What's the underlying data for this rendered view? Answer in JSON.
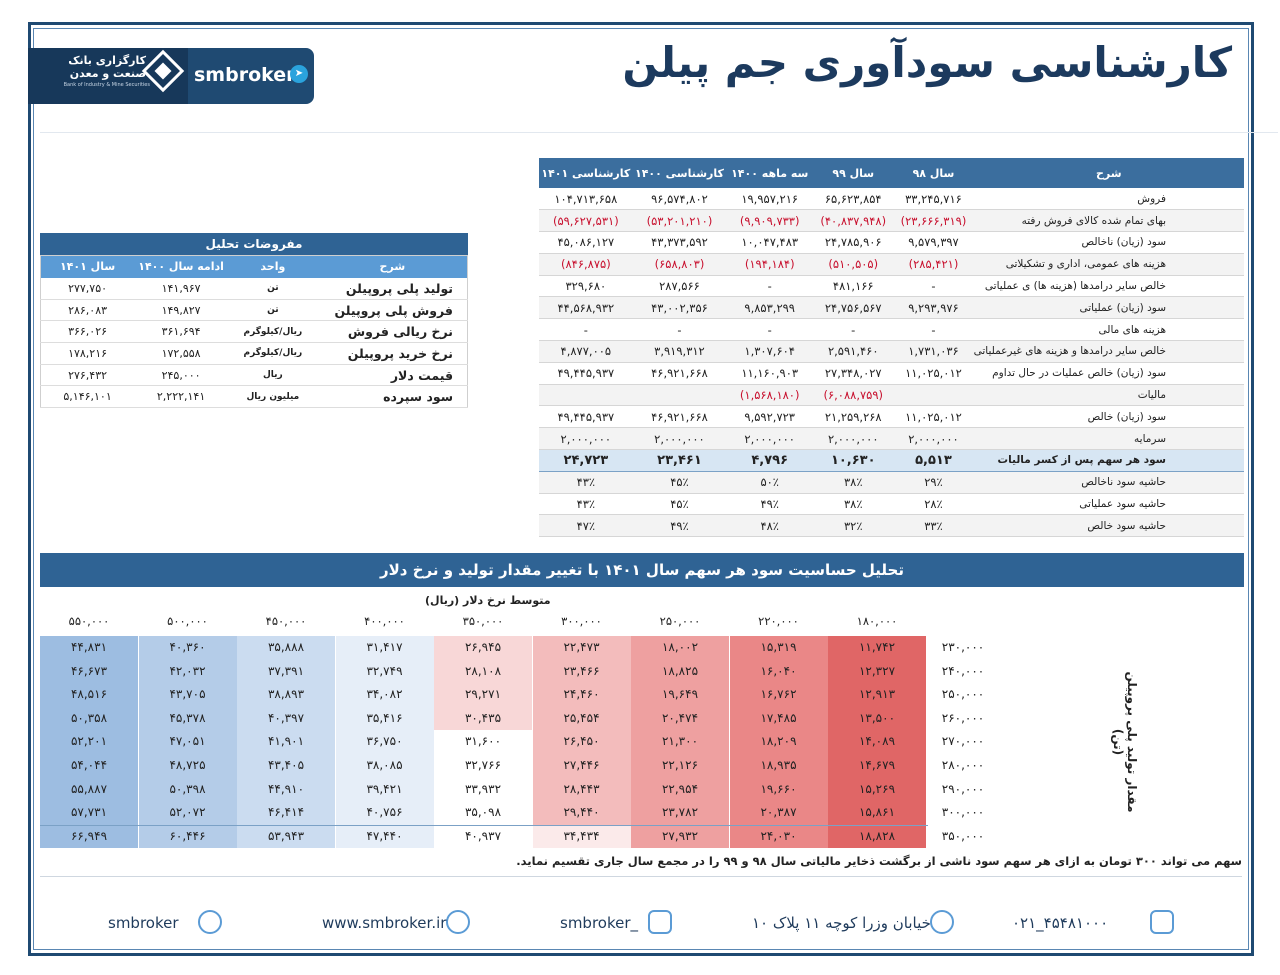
{
  "title": "کارشناسی سودآوری جم پیلن",
  "logo": {
    "name_line1": "کارگزاری بانک",
    "name_line2": "صنعت و معدن",
    "english": "Bank of Industry & Mine Securities",
    "brand": "smbroker"
  },
  "main_table": {
    "headers": [
      "شرح",
      "سال ۹۸",
      "سال ۹۹",
      "سه ماهه ۱۴۰۰",
      "کارشناسی ۱۴۰۰",
      "کارشناسی ۱۴۰۱"
    ],
    "rows": [
      {
        "label": "فروش",
        "values": [
          "۳۳,۲۴۵,۷۱۶",
          "۶۵,۶۲۳,۸۵۴",
          "۱۹,۹۵۷,۲۱۶",
          "۹۶,۵۷۴,۸۰۲",
          "۱۰۴,۷۱۳,۶۵۸"
        ]
      },
      {
        "label": "بهای تمام شده کالای فروش رفته",
        "values": [
          "(۲۳,۶۶۶,۳۱۹)",
          "(۴۰,۸۳۷,۹۴۸)",
          "(۹,۹۰۹,۷۳۳)",
          "(۵۳,۲۰۱,۲۱۰)",
          "(۵۹,۶۲۷,۵۳۱)"
        ]
      },
      {
        "label": "سود (زیان) ناخالص",
        "values": [
          "۹,۵۷۹,۳۹۷",
          "۲۴,۷۸۵,۹۰۶",
          "۱۰,۰۴۷,۴۸۳",
          "۴۳,۳۷۳,۵۹۲",
          "۴۵,۰۸۶,۱۲۷"
        ]
      },
      {
        "label": "هزینه های عمومی، اداری و تشکیلاتی",
        "values": [
          "(۲۸۵,۴۲۱)",
          "(۵۱۰,۵۰۵)",
          "(۱۹۴,۱۸۴)",
          "(۶۵۸,۸۰۳)",
          "(۸۴۶,۸۷۵)"
        ]
      },
      {
        "label": "خالص سایر درامدها (هزینه ها) ی عملیاتی",
        "values": [
          "-",
          "۴۸۱,۱۶۶",
          "-",
          "۲۸۷,۵۶۶",
          "۳۲۹,۶۸۰"
        ]
      },
      {
        "label": "سود (زیان) عملیاتی",
        "values": [
          "۹,۲۹۳,۹۷۶",
          "۲۴,۷۵۶,۵۶۷",
          "۹,۸۵۳,۲۹۹",
          "۴۳,۰۰۲,۳۵۶",
          "۴۴,۵۶۸,۹۳۲"
        ]
      },
      {
        "label": "هزینه های مالی",
        "values": [
          "-",
          "-",
          "-",
          "-",
          "-"
        ]
      },
      {
        "label": "خالص سایر درامدها و هزینه های غیرعملیاتی",
        "values": [
          "۱,۷۳۱,۰۳۶",
          "۲,۵۹۱,۴۶۰",
          "۱,۳۰۷,۶۰۴",
          "۳,۹۱۹,۳۱۲",
          "۴,۸۷۷,۰۰۵"
        ]
      },
      {
        "label": "سود (زیان) خالص عملیات در حال تداوم",
        "values": [
          "۱۱,۰۲۵,۰۱۲",
          "۲۷,۳۴۸,۰۲۷",
          "۱۱,۱۶۰,۹۰۳",
          "۴۶,۹۲۱,۶۶۸",
          "۴۹,۴۴۵,۹۳۷"
        ]
      },
      {
        "label": "مالیات",
        "values": [
          "",
          "(۶,۰۸۸,۷۵۹)",
          "(۱,۵۶۸,۱۸۰)",
          "",
          ""
        ]
      },
      {
        "label": "سود (زیان) خالص",
        "values": [
          "۱۱,۰۲۵,۰۱۲",
          "۲۱,۲۵۹,۲۶۸",
          "۹,۵۹۲,۷۲۳",
          "۴۶,۹۲۱,۶۶۸",
          "۴۹,۴۴۵,۹۳۷"
        ]
      },
      {
        "label": "سرمایه",
        "values": [
          "۲,۰۰۰,۰۰۰",
          "۲,۰۰۰,۰۰۰",
          "۲,۰۰۰,۰۰۰",
          "۲,۰۰۰,۰۰۰",
          "۲,۰۰۰,۰۰۰"
        ]
      },
      {
        "label": "سود هر سهم پس از کسر مالیات",
        "values": [
          "۵,۵۱۳",
          "۱۰,۶۳۰",
          "۴,۷۹۶",
          "۲۳,۴۶۱",
          "۲۴,۷۲۳"
        ],
        "highlight": true
      },
      {
        "label": "حاشیه سود ناخالص",
        "values": [
          "۲۹٪",
          "۳۸٪",
          "۵۰٪",
          "۴۵٪",
          "۴۳٪"
        ]
      },
      {
        "label": "حاشیه سود عملیاتی",
        "values": [
          "۲۸٪",
          "۳۸٪",
          "۴۹٪",
          "۴۵٪",
          "۴۳٪"
        ]
      },
      {
        "label": "حاشیه سود خالص",
        "values": [
          "۳۳٪",
          "۳۲٪",
          "۴۸٪",
          "۴۹٪",
          "۴۷٪"
        ]
      }
    ]
  },
  "assumptions": {
    "title": "مفروضات تحلیل",
    "headers": [
      "شرح",
      "واحد",
      "ادامه سال ۱۴۰۰",
      "سال ۱۴۰۱"
    ],
    "rows": [
      {
        "label": "تولید پلی پروپیلن",
        "unit": "تن",
        "v1400": "۱۴۱,۹۶۷",
        "v1401": "۲۷۷,۷۵۰"
      },
      {
        "label": "فروش پلی پروپیلن",
        "unit": "تن",
        "v1400": "۱۴۹,۸۲۷",
        "v1401": "۲۸۶,۰۸۳"
      },
      {
        "label": "نرخ ریالی فروش",
        "unit": "ریال/کیلوگرم",
        "v1400": "۳۶۱,۶۹۴",
        "v1401": "۳۶۶,۰۲۶"
      },
      {
        "label": "نرخ خرید پروپیلن",
        "unit": "ریال/کیلوگرم",
        "v1400": "۱۷۲,۵۵۸",
        "v1401": "۱۷۸,۲۱۶"
      },
      {
        "label": "قیمت دلار",
        "unit": "ریال",
        "v1400": "۲۴۵,۰۰۰",
        "v1401": "۲۷۶,۴۳۲"
      },
      {
        "label": "سود سپرده",
        "unit": "میلیون ریال",
        "v1400": "۲,۲۲۲,۱۴۱",
        "v1401": "۵,۱۴۶,۱۰۱"
      }
    ]
  },
  "sensitivity": {
    "title": "تحلیل حساسیت سود هر سهم سال ۱۴۰۱ با تغییر مقدار تولید و نرخ دلار",
    "x_label": "متوسط نرخ دلار (ریال)",
    "y_label": "مقدار تولید پلی پروپیلن (تن)",
    "dollar_rates": [
      "۱۸۰,۰۰۰",
      "۲۲۰,۰۰۰",
      "۲۵۰,۰۰۰",
      "۳۰۰,۰۰۰",
      "۳۵۰,۰۰۰",
      "۴۰۰,۰۰۰",
      "۴۵۰,۰۰۰",
      "۵۰۰,۰۰۰",
      "۵۵۰,۰۰۰"
    ],
    "productions": [
      "۲۳۰,۰۰۰",
      "۲۴۰,۰۰۰",
      "۲۵۰,۰۰۰",
      "۲۶۰,۰۰۰",
      "۲۷۰,۰۰۰",
      "۲۸۰,۰۰۰",
      "۲۹۰,۰۰۰",
      "۳۰۰,۰۰۰",
      "۳۵۰,۰۰۰"
    ],
    "values": [
      [
        "۱۱,۷۴۲",
        "۱۵,۳۱۹",
        "۱۸,۰۰۲",
        "۲۲,۴۷۳",
        "۲۶,۹۴۵",
        "۳۱,۴۱۷",
        "۳۵,۸۸۸",
        "۴۰,۳۶۰",
        "۴۴,۸۳۱"
      ],
      [
        "۱۲,۳۲۷",
        "۱۶,۰۴۰",
        "۱۸,۸۲۵",
        "۲۳,۴۶۶",
        "۲۸,۱۰۸",
        "۳۲,۷۴۹",
        "۳۷,۳۹۱",
        "۴۲,۰۳۲",
        "۴۶,۶۷۳"
      ],
      [
        "۱۲,۹۱۳",
        "۱۶,۷۶۲",
        "۱۹,۶۴۹",
        "۲۴,۴۶۰",
        "۲۹,۲۷۱",
        "۳۴,۰۸۲",
        "۳۸,۸۹۳",
        "۴۳,۷۰۵",
        "۴۸,۵۱۶"
      ],
      [
        "۱۳,۵۰۰",
        "۱۷,۴۸۵",
        "۲۰,۴۷۴",
        "۲۵,۴۵۴",
        "۳۰,۴۳۵",
        "۳۵,۴۱۶",
        "۴۰,۳۹۷",
        "۴۵,۳۷۸",
        "۵۰,۳۵۸"
      ],
      [
        "۱۴,۰۸۹",
        "۱۸,۲۰۹",
        "۲۱,۳۰۰",
        "۲۶,۴۵۰",
        "۳۱,۶۰۰",
        "۳۶,۷۵۰",
        "۴۱,۹۰۱",
        "۴۷,۰۵۱",
        "۵۲,۲۰۱"
      ],
      [
        "۱۴,۶۷۹",
        "۱۸,۹۳۵",
        "۲۲,۱۲۶",
        "۲۷,۴۴۶",
        "۳۲,۷۶۶",
        "۳۸,۰۸۵",
        "۴۳,۴۰۵",
        "۴۸,۷۲۵",
        "۵۴,۰۴۴"
      ],
      [
        "۱۵,۲۶۹",
        "۱۹,۶۶۰",
        "۲۲,۹۵۴",
        "۲۸,۴۴۳",
        "۳۳,۹۳۲",
        "۳۹,۴۲۱",
        "۴۴,۹۱۰",
        "۵۰,۳۹۸",
        "۵۵,۸۸۷"
      ],
      [
        "۱۵,۸۶۱",
        "۲۰,۳۸۷",
        "۲۳,۷۸۲",
        "۲۹,۴۴۰",
        "۳۵,۰۹۸",
        "۴۰,۷۵۶",
        "۴۶,۴۱۴",
        "۵۲,۰۷۲",
        "۵۷,۷۳۱"
      ],
      [
        "۱۸,۸۲۸",
        "۲۴,۰۳۰",
        "۲۷,۹۳۲",
        "۳۴,۴۳۴",
        "۴۰,۹۳۷",
        "۴۷,۴۴۰",
        "۵۳,۹۴۳",
        "۶۰,۴۴۶",
        "۶۶,۹۴۹"
      ]
    ],
    "note": "سهم می تواند ۳۰۰ تومان به ازای هر سهم سود ناشی از برگشت ذخایر مالیاتی سال ۹۸ و ۹۹ را در مجمع سال جاری تقسیم نماید."
  },
  "footer": {
    "phone": "۰۲۱_۴۵۴۸۱۰۰۰",
    "address": "خیابان وزرا کوچه ۱۱ پلاک ۱۰",
    "instagram": "smbroker_",
    "website": "www.smbroker.ir",
    "telegram": "smbroker"
  }
}
